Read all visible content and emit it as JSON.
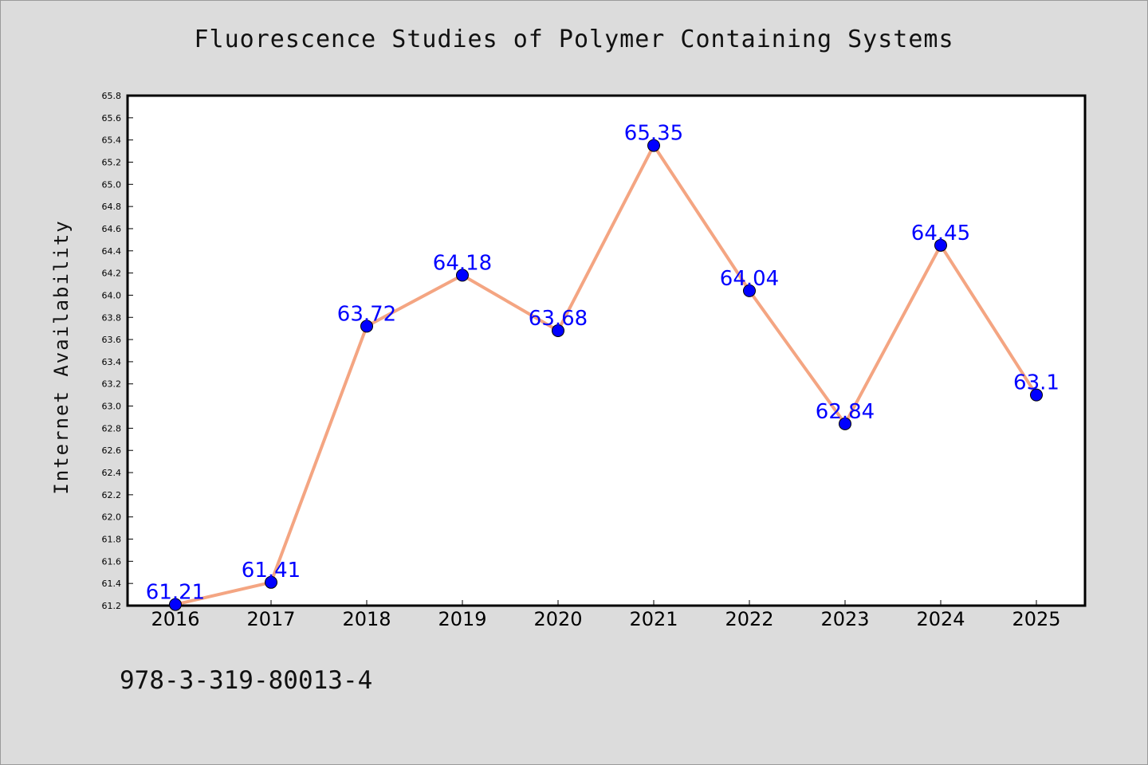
{
  "chart_data": {
    "type": "line",
    "title": "Fluorescence Studies of Polymer Containing Systems",
    "xlabel": "",
    "ylabel": "Internet Availability",
    "categories": [
      "2016",
      "2017",
      "2018",
      "2019",
      "2020",
      "2021",
      "2022",
      "2023",
      "2024",
      "2025"
    ],
    "series": [
      {
        "values": [
          61.21,
          61.41,
          63.72,
          64.18,
          63.68,
          65.35,
          64.04,
          62.84,
          64.45,
          63.1
        ],
        "data_labels": [
          "61.21",
          "61.41",
          "63.72",
          "64.18",
          "63.68",
          "65.35",
          "64.04",
          "62.84",
          "64.45",
          "63.1"
        ],
        "line_color": "#f4a582",
        "marker_color": "#0000ff",
        "label_color": "#0000ff"
      }
    ],
    "ylim": [
      61.2,
      65.8
    ],
    "yticks": [
      "61.2",
      "61.4",
      "61.6",
      "61.8",
      "62.0",
      "62.2",
      "62.4",
      "62.6",
      "62.8",
      "63.0",
      "63.2",
      "63.4",
      "63.6",
      "63.8",
      "64.0",
      "64.2",
      "64.4",
      "64.6",
      "64.8",
      "65.0",
      "65.2",
      "65.4",
      "65.6",
      "65.8"
    ],
    "grid": false,
    "legend": "none",
    "plot_background": "#ffffff",
    "figure_background": "#dcdcdc"
  },
  "footer": {
    "code": "978-3-319-80013-4"
  }
}
